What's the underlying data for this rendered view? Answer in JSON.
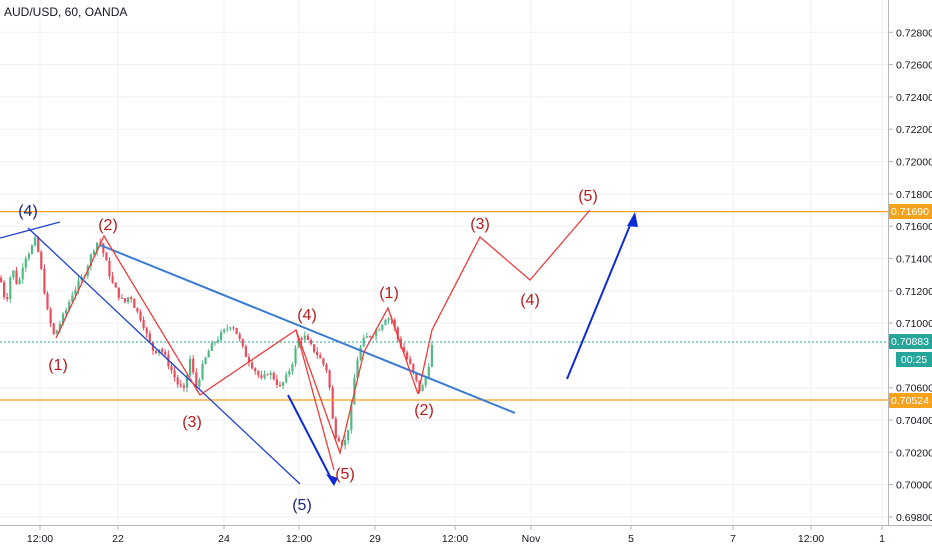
{
  "header": {
    "symbol": "AUD/USD, 60, OANDA"
  },
  "colors": {
    "up": "#53b987",
    "down": "#eb4d5c",
    "level": "#f7a21b",
    "trend": "#3a7bd5",
    "wave_red": "#ef3b3b",
    "label_red": "#b71c1c",
    "channel_blue": "#1e3fd8",
    "label_blue": "#1a237e",
    "arrow_blue": "#0d2bd6",
    "price_line": "#26a69a",
    "countdown_bg": "#26a69a"
  },
  "badges": {
    "upper_level": "0.71690",
    "current_price": "0.70883",
    "countdown": "00:25",
    "lower_level": "0.70524"
  },
  "chart_data": {
    "type": "candlestick",
    "title": "AUD/USD, 60, OANDA",
    "ylim": [
      0.6975,
      0.73
    ],
    "y_ticks": [
      "0.72800",
      "0.72600",
      "0.72400",
      "0.72200",
      "0.72000",
      "0.71800",
      "0.71600",
      "0.71400",
      "0.71200",
      "0.71000",
      "0.70600",
      "0.70400",
      "0.70200",
      "0.70000",
      "0.69800"
    ],
    "x_ticks": [
      "12:00",
      "22",
      "24",
      "12:00",
      "29",
      "12:00",
      "Nov",
      "5",
      "7",
      "12:00",
      "1"
    ],
    "horizontal_levels": [
      0.7169,
      0.70524
    ],
    "current_price": 0.70883,
    "price_path": [
      [
        0,
        0.7128
      ],
      [
        6,
        0.7112
      ],
      [
        12,
        0.7135
      ],
      [
        18,
        0.7122
      ],
      [
        24,
        0.714
      ],
      [
        30,
        0.7145
      ],
      [
        36,
        0.7152
      ],
      [
        42,
        0.713
      ],
      [
        48,
        0.7105
      ],
      [
        54,
        0.7092
      ],
      [
        60,
        0.71
      ],
      [
        66,
        0.7108
      ],
      [
        72,
        0.7118
      ],
      [
        78,
        0.7124
      ],
      [
        84,
        0.713
      ],
      [
        90,
        0.714
      ],
      [
        96,
        0.715
      ],
      [
        100,
        0.715
      ],
      [
        106,
        0.7138
      ],
      [
        112,
        0.7125
      ],
      [
        118,
        0.7118
      ],
      [
        124,
        0.7112
      ],
      [
        130,
        0.7118
      ],
      [
        136,
        0.7108
      ],
      [
        142,
        0.7102
      ],
      [
        148,
        0.709
      ],
      [
        154,
        0.7082
      ],
      [
        160,
        0.7085
      ],
      [
        166,
        0.7078
      ],
      [
        172,
        0.707
      ],
      [
        178,
        0.7062
      ],
      [
        184,
        0.7058
      ],
      [
        190,
        0.7078
      ],
      [
        196,
        0.706
      ],
      [
        202,
        0.7072
      ],
      [
        208,
        0.7082
      ],
      [
        214,
        0.7088
      ],
      [
        220,
        0.7092
      ],
      [
        226,
        0.7096
      ],
      [
        232,
        0.71
      ],
      [
        238,
        0.7092
      ],
      [
        244,
        0.7082
      ],
      [
        250,
        0.7076
      ],
      [
        256,
        0.707
      ],
      [
        262,
        0.7064
      ],
      [
        268,
        0.707
      ],
      [
        274,
        0.7066
      ],
      [
        280,
        0.706
      ],
      [
        286,
        0.7066
      ],
      [
        292,
        0.7075
      ],
      [
        298,
        0.709
      ],
      [
        304,
        0.7092
      ],
      [
        310,
        0.7086
      ],
      [
        316,
        0.7082
      ],
      [
        322,
        0.7076
      ],
      [
        328,
        0.707
      ],
      [
        334,
        0.7032
      ],
      [
        340,
        0.7028
      ],
      [
        344,
        0.7024
      ],
      [
        350,
        0.704
      ],
      [
        356,
        0.7075
      ],
      [
        362,
        0.7088
      ],
      [
        368,
        0.7092
      ],
      [
        374,
        0.7094
      ],
      [
        380,
        0.7098
      ],
      [
        386,
        0.7104
      ],
      [
        392,
        0.7102
      ],
      [
        398,
        0.709
      ],
      [
        404,
        0.7082
      ],
      [
        410,
        0.7074
      ],
      [
        416,
        0.7064
      ],
      [
        420,
        0.7058
      ],
      [
        424,
        0.7062
      ],
      [
        428,
        0.7072
      ],
      [
        432,
        0.7086
      ]
    ],
    "annotations": {
      "red_labels": [
        "(2)",
        "(1)",
        "(3)",
        "(4)",
        "(5)",
        "(1)",
        "(2)",
        "(3)",
        "(4)",
        "(5)"
      ],
      "blue_labels": [
        "(4)",
        "(5)"
      ]
    }
  }
}
